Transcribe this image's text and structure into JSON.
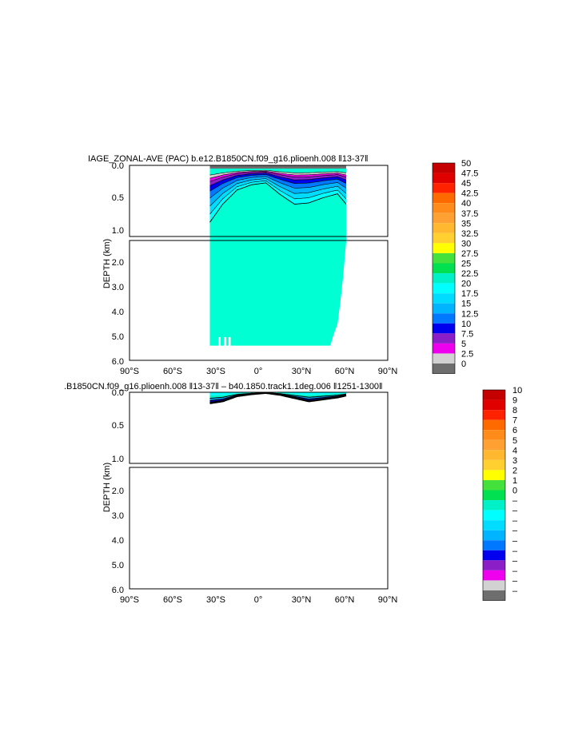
{
  "chart_data": [
    {
      "type": "contour",
      "title": "IAGE_ZONAL-AVE (PAC) b.e12.B1850CN.f09_g16.plioenh.008  ‖13-37‖",
      "ylabel": "DEPTH (km)",
      "xlabel": "",
      "x_ticks": [
        "90°S",
        "60°S",
        "30°S",
        "0°",
        "30°N",
        "60°N",
        "90°N"
      ],
      "x_tick_values": [
        -90,
        -60,
        -30,
        0,
        30,
        60,
        90
      ],
      "xlim": [
        -90,
        90
      ],
      "upper_y_ticks": [
        "0.0",
        "0.5",
        "1.0"
      ],
      "upper_y_values": [
        0,
        0.5,
        1.0
      ],
      "upper_ylim": [
        0,
        1.1
      ],
      "lower_y_ticks": [
        "2.0",
        "3.0",
        "4.0",
        "5.0",
        "6.0"
      ],
      "lower_y_values": [
        2,
        3,
        4,
        5,
        6
      ],
      "lower_ylim": [
        1.1,
        6.0
      ],
      "data_lat_range": [
        -34,
        61
      ],
      "dominant_value_band": "22.5-25",
      "surface_band": "0-2.5",
      "thermocline_depth_km": [
        {
          "lat": -34,
          "depth": 0.88
        },
        {
          "lat": -25,
          "depth": 0.6
        },
        {
          "lat": -15,
          "depth": 0.38
        },
        {
          "lat": -5,
          "depth": 0.3
        },
        {
          "lat": 5,
          "depth": 0.27
        },
        {
          "lat": 15,
          "depth": 0.45
        },
        {
          "lat": 25,
          "depth": 0.6
        },
        {
          "lat": 35,
          "depth": 0.58
        },
        {
          "lat": 45,
          "depth": 0.5
        },
        {
          "lat": 55,
          "depth": 0.44
        },
        {
          "lat": 61,
          "depth": 0.6
        }
      ],
      "bottom_depth_km": [
        {
          "lat": -34,
          "depth": 5.4
        },
        {
          "lat": 50,
          "depth": 5.4
        },
        {
          "lat": 52,
          "depth": 5.0
        },
        {
          "lat": 55,
          "depth": 4.5
        },
        {
          "lat": 57,
          "depth": 3.6
        },
        {
          "lat": 59,
          "depth": 2.5
        },
        {
          "lat": 61,
          "depth": 1.1
        }
      ],
      "colorbar_labels": [
        "50",
        "47.5",
        "45",
        "42.5",
        "40",
        "37.5",
        "35",
        "32.5",
        "30",
        "27.5",
        "25",
        "22.5",
        "20",
        "17.5",
        "15",
        "12.5",
        "10",
        "7.5",
        "5",
        "2.5",
        "0"
      ]
    },
    {
      "type": "contour",
      "title": ".B1850CN.f09_g16.plioenh.008  ‖13-37‖  –  b40.1850.track1.1deg.006  ‖1251-1300‖",
      "ylabel": "DEPTH (km)",
      "xlabel": "",
      "x_ticks": [
        "90°S",
        "60°S",
        "30°S",
        "0°",
        "30°N",
        "60°N",
        "90°N"
      ],
      "upper_y_ticks": [
        "0.0",
        "0.5",
        "1.0"
      ],
      "lower_y_ticks": [
        "2.0",
        "3.0",
        "4.0",
        "5.0",
        "6.0"
      ],
      "data_lat_range": [
        -34,
        61
      ],
      "anomaly_depth_km": [
        {
          "lat": -34,
          "depth": 0.17
        },
        {
          "lat": -25,
          "depth": 0.14
        },
        {
          "lat": -15,
          "depth": 0.06
        },
        {
          "lat": -5,
          "depth": 0.03
        },
        {
          "lat": 5,
          "depth": 0.01
        },
        {
          "lat": 15,
          "depth": 0.04
        },
        {
          "lat": 25,
          "depth": 0.09
        },
        {
          "lat": 35,
          "depth": 0.14
        },
        {
          "lat": 45,
          "depth": 0.11
        },
        {
          "lat": 55,
          "depth": 0.08
        },
        {
          "lat": 61,
          "depth": 0.05
        }
      ],
      "colorbar_labels": [
        "10",
        "9",
        "8",
        "7",
        "6",
        "5",
        "4",
        "3",
        "2",
        "1",
        "0",
        "–",
        "–",
        "–",
        "–",
        "–",
        "–",
        "–",
        "–",
        "–",
        "–"
      ]
    }
  ],
  "colormap": [
    "#c40000",
    "#e00000",
    "#ff2200",
    "#ff6a00",
    "#ff8c1a",
    "#ffa033",
    "#ffb830",
    "#ffd030",
    "#ffff00",
    "#44e03c",
    "#00e050",
    "#00f0c8",
    "#00ffff",
    "#00dcff",
    "#00b4ff",
    "#0078ff",
    "#0000ee",
    "#8c1ec8",
    "#ee00ee",
    "#d2d2d2",
    "#6e6e6e"
  ],
  "colors": {
    "ocean_fill": "#00ffd2",
    "surface_grey": "#6e6e6e",
    "contour_line": "#000000"
  }
}
